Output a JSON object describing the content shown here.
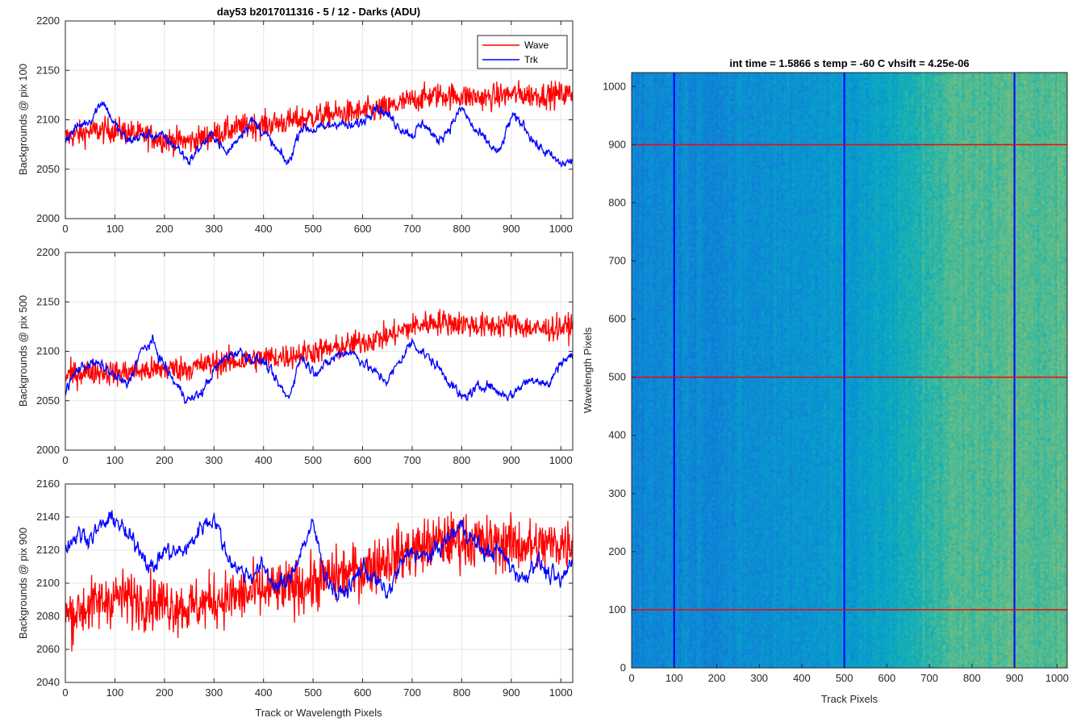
{
  "chart_data": [
    {
      "type": "line",
      "title": "day53 b2017011316 - 5 / 12 - Darks (ADU)",
      "xlabel": "",
      "ylabel": "Backgrounds @ pix 100",
      "xlim": [
        0,
        1024
      ],
      "ylim": [
        2000,
        2200
      ],
      "xticks": [
        0,
        100,
        200,
        300,
        400,
        500,
        600,
        700,
        800,
        900,
        1000
      ],
      "yticks": [
        2000,
        2050,
        2100,
        2150,
        2200
      ],
      "grid": true,
      "legend": {
        "position": "top-right",
        "entries": [
          "Wave",
          "Trk"
        ]
      },
      "series": [
        {
          "name": "Wave",
          "color": "#ff0000",
          "x": [
            0,
            50,
            100,
            150,
            200,
            250,
            300,
            350,
            400,
            450,
            500,
            550,
            600,
            650,
            700,
            750,
            800,
            850,
            900,
            950,
            1024
          ],
          "values": [
            2082,
            2088,
            2090,
            2085,
            2080,
            2078,
            2085,
            2092,
            2095,
            2098,
            2103,
            2106,
            2108,
            2112,
            2120,
            2125,
            2124,
            2122,
            2126,
            2125,
            2126
          ],
          "noise": 11
        },
        {
          "name": "Trk",
          "color": "#0000ff",
          "x": [
            0,
            25,
            50,
            75,
            100,
            125,
            150,
            175,
            200,
            225,
            250,
            275,
            300,
            325,
            350,
            375,
            400,
            425,
            450,
            475,
            500,
            525,
            550,
            575,
            600,
            625,
            650,
            675,
            700,
            725,
            750,
            775,
            800,
            825,
            850,
            875,
            900,
            925,
            950,
            975,
            1000,
            1024
          ],
          "values": [
            2080,
            2093,
            2100,
            2120,
            2095,
            2078,
            2083,
            2085,
            2082,
            2072,
            2058,
            2075,
            2085,
            2065,
            2083,
            2100,
            2088,
            2070,
            2055,
            2093,
            2090,
            2092,
            2098,
            2092,
            2098,
            2115,
            2105,
            2093,
            2085,
            2097,
            2078,
            2092,
            2112,
            2090,
            2078,
            2065,
            2103,
            2095,
            2075,
            2065,
            2055,
            2058
          ],
          "noise": 4
        }
      ]
    },
    {
      "type": "line",
      "title": "",
      "xlabel": "",
      "ylabel": "Backgrounds @ pix 500",
      "xlim": [
        0,
        1024
      ],
      "ylim": [
        2000,
        2200
      ],
      "xticks": [
        0,
        100,
        200,
        300,
        400,
        500,
        600,
        700,
        800,
        900,
        1000
      ],
      "yticks": [
        2000,
        2050,
        2100,
        2150,
        2200
      ],
      "grid": true,
      "series": [
        {
          "name": "Wave",
          "color": "#ff0000",
          "x": [
            0,
            50,
            100,
            150,
            200,
            250,
            300,
            350,
            400,
            450,
            500,
            550,
            600,
            650,
            700,
            750,
            800,
            850,
            900,
            950,
            1024
          ],
          "values": [
            2075,
            2080,
            2078,
            2080,
            2082,
            2083,
            2088,
            2090,
            2093,
            2095,
            2100,
            2103,
            2110,
            2115,
            2125,
            2130,
            2128,
            2125,
            2128,
            2122,
            2125
          ],
          "noise": 11
        },
        {
          "name": "Trk",
          "color": "#0000ff",
          "x": [
            0,
            25,
            50,
            75,
            100,
            125,
            150,
            175,
            200,
            225,
            250,
            275,
            300,
            325,
            350,
            375,
            400,
            425,
            450,
            475,
            500,
            525,
            550,
            575,
            600,
            625,
            650,
            675,
            700,
            725,
            750,
            775,
            800,
            825,
            850,
            875,
            900,
            925,
            950,
            975,
            1000,
            1024
          ],
          "values": [
            2060,
            2082,
            2088,
            2085,
            2075,
            2065,
            2098,
            2110,
            2085,
            2065,
            2050,
            2058,
            2080,
            2095,
            2100,
            2093,
            2090,
            2070,
            2052,
            2095,
            2080,
            2085,
            2097,
            2100,
            2090,
            2078,
            2070,
            2090,
            2110,
            2097,
            2085,
            2070,
            2052,
            2060,
            2068,
            2058,
            2055,
            2068,
            2073,
            2065,
            2090,
            2095
          ],
          "noise": 4
        }
      ]
    },
    {
      "type": "line",
      "title": "",
      "xlabel": "Track or Wavelength Pixels",
      "ylabel": "Backgrounds @ pix 900",
      "xlim": [
        0,
        1024
      ],
      "ylim": [
        2040,
        2160
      ],
      "xticks": [
        0,
        100,
        200,
        300,
        400,
        500,
        600,
        700,
        800,
        900,
        1000
      ],
      "yticks": [
        2040,
        2060,
        2080,
        2100,
        2120,
        2140,
        2160
      ],
      "grid": true,
      "series": [
        {
          "name": "Wave",
          "color": "#ff0000",
          "x": [
            0,
            50,
            100,
            150,
            200,
            250,
            300,
            350,
            400,
            450,
            500,
            550,
            600,
            650,
            700,
            750,
            800,
            850,
            900,
            950,
            1024
          ],
          "values": [
            2080,
            2086,
            2092,
            2090,
            2088,
            2085,
            2090,
            2092,
            2095,
            2097,
            2100,
            2105,
            2108,
            2115,
            2120,
            2125,
            2126,
            2124,
            2124,
            2122,
            2125
          ],
          "noise": 14
        },
        {
          "name": "Trk",
          "color": "#0000ff",
          "x": [
            0,
            25,
            50,
            75,
            100,
            125,
            150,
            175,
            200,
            225,
            250,
            275,
            300,
            325,
            350,
            375,
            400,
            425,
            450,
            475,
            500,
            525,
            550,
            575,
            600,
            625,
            650,
            675,
            700,
            725,
            750,
            775,
            800,
            825,
            850,
            875,
            900,
            925,
            950,
            975,
            1000,
            1024
          ],
          "values": [
            2122,
            2130,
            2128,
            2135,
            2140,
            2128,
            2122,
            2108,
            2120,
            2118,
            2122,
            2135,
            2140,
            2118,
            2108,
            2105,
            2110,
            2098,
            2100,
            2120,
            2135,
            2105,
            2092,
            2098,
            2110,
            2102,
            2093,
            2110,
            2120,
            2115,
            2120,
            2128,
            2135,
            2125,
            2118,
            2120,
            2110,
            2102,
            2115,
            2105,
            2100,
            2115
          ],
          "noise": 4
        }
      ]
    },
    {
      "type": "heatmap",
      "title": "int time = 1.5866 s    temp = -60 C    vhsift = 4.25e-06",
      "xlabel": "Track Pixels",
      "ylabel": "Wavelength Pixels",
      "xlim": [
        0,
        1024
      ],
      "ylim": [
        0,
        1024
      ],
      "xticks": [
        0,
        100,
        200,
        300,
        400,
        500,
        600,
        700,
        800,
        900,
        1000
      ],
      "yticks": [
        0,
        100,
        200,
        300,
        400,
        500,
        600,
        700,
        800,
        900,
        1000
      ],
      "colormap": "parula",
      "column_profile_x": [
        0,
        100,
        200,
        300,
        400,
        500,
        600,
        650,
        700,
        750,
        800,
        850,
        900,
        950,
        1024
      ],
      "column_profile_level": [
        0.33,
        0.35,
        0.34,
        0.36,
        0.38,
        0.4,
        0.44,
        0.48,
        0.54,
        0.58,
        0.58,
        0.59,
        0.6,
        0.59,
        0.6
      ],
      "vertical_lines": {
        "x": [
          100,
          500,
          900
        ],
        "color": "#0000ff"
      },
      "horizontal_lines": {
        "y": [
          100,
          500,
          900
        ],
        "color": "#ff0000"
      }
    }
  ]
}
